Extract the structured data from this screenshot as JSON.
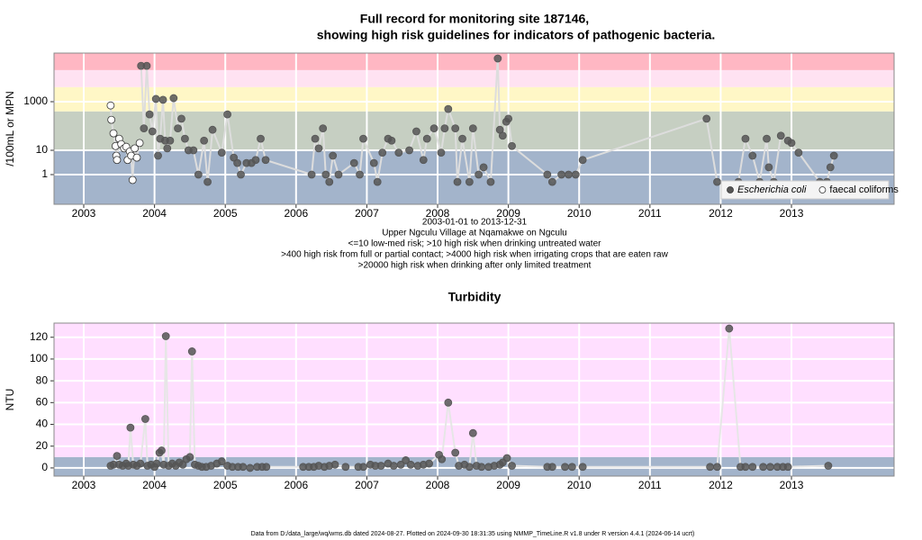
{
  "chart_data": [
    {
      "type": "line",
      "title": [
        "Full record for monitoring site 187146,",
        "showing high risk guidelines for indicators of pathogenic bacteria."
      ],
      "ylabel": "/100mL or MPN",
      "log_y": true,
      "ylim": [
        0.06,
        100000
      ],
      "yticks": [
        1,
        10,
        1000
      ],
      "xlim": [
        2002.58,
        2014.45
      ],
      "xticks": [
        2003,
        2004,
        2005,
        2006,
        2007,
        2008,
        2009,
        2010,
        2011,
        2012,
        2013
      ],
      "band_thresholds": [
        10,
        400,
        4000,
        20000
      ],
      "band_colors": [
        "#a3b4cb",
        "#c6cfc2",
        "#fff7c6",
        "#ffe2f2",
        "#ffb7c3"
      ],
      "grid": true,
      "grid_color": "#ffffff",
      "line_color": "#dddddd",
      "legend": "bottom-right",
      "notes": [
        "2003-01-01 to 2013-12-31",
        "Upper Ngculu Village at Nqamakwe on Ngculu",
        "<=10 low-med risk; >10 high risk when drinking untreated water",
        ">400 high risk from full or partial contact; >4000 high risk when irrigating crops that are eaten raw",
        ">20000 high risk when drinking after only limited treatment"
      ],
      "series": [
        {
          "name": "Escherichia coli",
          "color": "#555555",
          "marker": "filled",
          "x": [
            2003.81,
            2003.85,
            2003.89,
            2003.93,
            2003.97,
            2004.02,
            2004.05,
            2004.08,
            2004.12,
            2004.15,
            2004.18,
            2004.22,
            2004.27,
            2004.33,
            2004.38,
            2004.43,
            2004.48,
            2004.55,
            2004.62,
            2004.7,
            2004.75,
            2004.82,
            2004.95,
            2005.03,
            2005.12,
            2005.17,
            2005.22,
            2005.3,
            2005.37,
            2005.43,
            2005.5,
            2005.57,
            2006.22,
            2006.27,
            2006.32,
            2006.38,
            2006.42,
            2006.47,
            2006.52,
            2006.6,
            2006.82,
            2006.9,
            2006.95,
            2007.1,
            2007.15,
            2007.22,
            2007.3,
            2007.35,
            2007.45,
            2007.6,
            2007.7,
            2007.8,
            2007.85,
            2007.95,
            2008.05,
            2008.1,
            2008.15,
            2008.25,
            2008.28,
            2008.35,
            2008.45,
            2008.5,
            2008.58,
            2008.65,
            2008.75,
            2008.85,
            2008.88,
            2008.92,
            2008.97,
            2009.0,
            2009.05,
            2009.55,
            2009.62,
            2009.75,
            2009.85,
            2009.95,
            2010.05,
            2011.8,
            2011.95,
            2012.25,
            2012.35,
            2012.45,
            2012.55,
            2012.65,
            2012.68,
            2012.75,
            2012.85,
            2012.95,
            2013.0,
            2013.1,
            2013.4,
            2013.5,
            2013.55,
            2013.6
          ],
          "values": [
            30000,
            80,
            30000,
            300,
            60,
            1300,
            6,
            30,
            1200,
            25,
            12,
            25,
            1400,
            80,
            200,
            30,
            10,
            10,
            1,
            25,
            0.5,
            70,
            8,
            300,
            5,
            3,
            1,
            3,
            3,
            4,
            30,
            4,
            1,
            30,
            12,
            80,
            1,
            0.5,
            6,
            1,
            3,
            1,
            30,
            3,
            0.5,
            8,
            30,
            25,
            8,
            10,
            60,
            4,
            30,
            80,
            8,
            80,
            500,
            80,
            0.5,
            30,
            0.5,
            80,
            1,
            2,
            0.5,
            60000,
            70,
            40,
            150,
            200,
            15,
            1,
            0.5,
            1,
            1,
            1,
            4,
            200,
            0.5,
            0.5,
            30,
            6,
            0.5,
            30,
            2,
            0.5,
            40,
            25,
            20,
            8,
            0.5,
            0.5,
            2,
            6
          ]
        },
        {
          "name": "faecal coliforms",
          "color": "#ffffff",
          "marker": "open",
          "x": [
            2003.38,
            2003.39,
            2003.42,
            2003.45,
            2003.46,
            2003.47,
            2003.5,
            2003.53,
            2003.57,
            2003.6,
            2003.62,
            2003.65,
            2003.67,
            2003.69,
            2003.72,
            2003.75,
            2003.79
          ],
          "values": [
            700,
            180,
            50,
            15,
            6,
            4,
            30,
            18,
            12,
            14,
            4,
            9,
            6,
            0.6,
            12,
            5,
            20
          ]
        }
      ]
    },
    {
      "type": "line",
      "title": "Turbidity",
      "ylabel": "NTU",
      "ylim": [
        -7.5,
        133
      ],
      "yticks": [
        0,
        20,
        40,
        60,
        80,
        100,
        120
      ],
      "xlim": [
        2002.58,
        2014.45
      ],
      "xticks": [
        2003,
        2004,
        2005,
        2006,
        2007,
        2008,
        2009,
        2010,
        2011,
        2012,
        2013
      ],
      "band_thresholds": [
        10
      ],
      "band_colors": [
        "#a3b4cb",
        "#ffdfff"
      ],
      "grid": true,
      "grid_color": "#ffffff",
      "line_color": "#e6e6e6",
      "series": [
        {
          "color": "#555555",
          "marker": "filled",
          "x": [
            2003.38,
            2003.42,
            2003.47,
            2003.5,
            2003.55,
            2003.6,
            2003.63,
            2003.66,
            2003.7,
            2003.75,
            2003.8,
            2003.87,
            2003.9,
            2003.95,
            2004.0,
            2004.03,
            2004.07,
            2004.1,
            2004.13,
            2004.16,
            2004.2,
            2004.25,
            2004.3,
            2004.35,
            2004.4,
            2004.45,
            2004.5,
            2004.53,
            2004.57,
            2004.62,
            2004.67,
            2004.73,
            2004.8,
            2004.88,
            2004.95,
            2005.03,
            2005.1,
            2005.18,
            2005.25,
            2005.35,
            2005.45,
            2005.52,
            2005.58,
            2006.1,
            2006.18,
            2006.25,
            2006.32,
            2006.4,
            2006.47,
            2006.55,
            2006.7,
            2006.88,
            2006.95,
            2007.05,
            2007.12,
            2007.2,
            2007.3,
            2007.38,
            2007.48,
            2007.55,
            2007.62,
            2007.72,
            2007.8,
            2007.88,
            2008.02,
            2008.06,
            2008.15,
            2008.25,
            2008.3,
            2008.38,
            2008.45,
            2008.5,
            2008.55,
            2008.62,
            2008.72,
            2008.8,
            2008.88,
            2008.92,
            2008.98,
            2009.05,
            2009.55,
            2009.62,
            2009.8,
            2009.9,
            2010.05,
            2011.85,
            2011.95,
            2012.12,
            2012.28,
            2012.35,
            2012.45,
            2012.6,
            2012.7,
            2012.8,
            2012.88,
            2012.95,
            2013.52
          ],
          "values": [
            2,
            3,
            11,
            3,
            2,
            4,
            2,
            37,
            3,
            2,
            4,
            45,
            2,
            3,
            1,
            4,
            14,
            16,
            3,
            121,
            2,
            4,
            2,
            5,
            3,
            8,
            10,
            107,
            3,
            2,
            1,
            1,
            2,
            4,
            6,
            2,
            1,
            1,
            1,
            0,
            1,
            1,
            1,
            1,
            1,
            1,
            2,
            1,
            2,
            3,
            1,
            1,
            1,
            3,
            2,
            2,
            4,
            2,
            3,
            7,
            3,
            2,
            3,
            4,
            12,
            8,
            60,
            14,
            2,
            3,
            1,
            32,
            2,
            1,
            1,
            2,
            3,
            5,
            9,
            2,
            1,
            1,
            1,
            1,
            1,
            1,
            1,
            128,
            1,
            1,
            1,
            1,
            1,
            1,
            1,
            1,
            2
          ]
        }
      ]
    }
  ],
  "footer": "Data from D:/data_large/wq/wms.db dated 2024-08-27. Plotted on 2024-09-30 18:31:35 using NMMP_TimeLine.R v1.8 under R version 4.4.1 (2024-06-14 ucrt)"
}
